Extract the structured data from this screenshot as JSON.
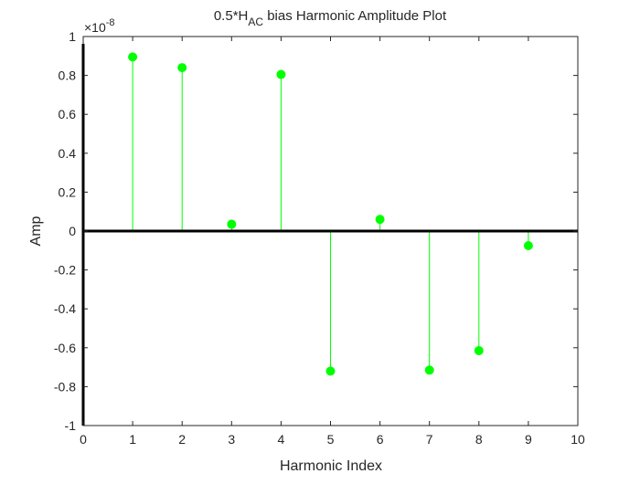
{
  "chart_data": {
    "type": "stem",
    "title": {
      "prefix": "0.5*H",
      "subscript": "AC",
      "suffix": " bias Harmonic Amplitude Plot"
    },
    "xlabel": "Harmonic Index",
    "ylabel": "Amp",
    "xlim": [
      0,
      10
    ],
    "ylim": [
      -1,
      1
    ],
    "y_exponent_label": {
      "base": "×10",
      "exponent": "-8"
    },
    "x_ticks": [
      "0",
      "1",
      "2",
      "3",
      "4",
      "5",
      "6",
      "7",
      "8",
      "9",
      "10"
    ],
    "y_ticks": [
      "-1",
      "-0.8",
      "-0.6",
      "-0.4",
      "-0.2",
      "0",
      "0.2",
      "0.4",
      "0.6",
      "0.8",
      "1"
    ],
    "grid": false,
    "series": [
      {
        "x": [
          1,
          2,
          3,
          4,
          5,
          6,
          7,
          8,
          9
        ],
        "values": [
          0.895,
          0.84,
          0.035,
          0.805,
          -0.72,
          0.06,
          -0.715,
          -0.615,
          -0.075
        ]
      }
    ],
    "colors": {
      "stem": "#00ff00",
      "marker": "#00ff00",
      "baseline": "#000000",
      "axis": "#262626"
    }
  }
}
